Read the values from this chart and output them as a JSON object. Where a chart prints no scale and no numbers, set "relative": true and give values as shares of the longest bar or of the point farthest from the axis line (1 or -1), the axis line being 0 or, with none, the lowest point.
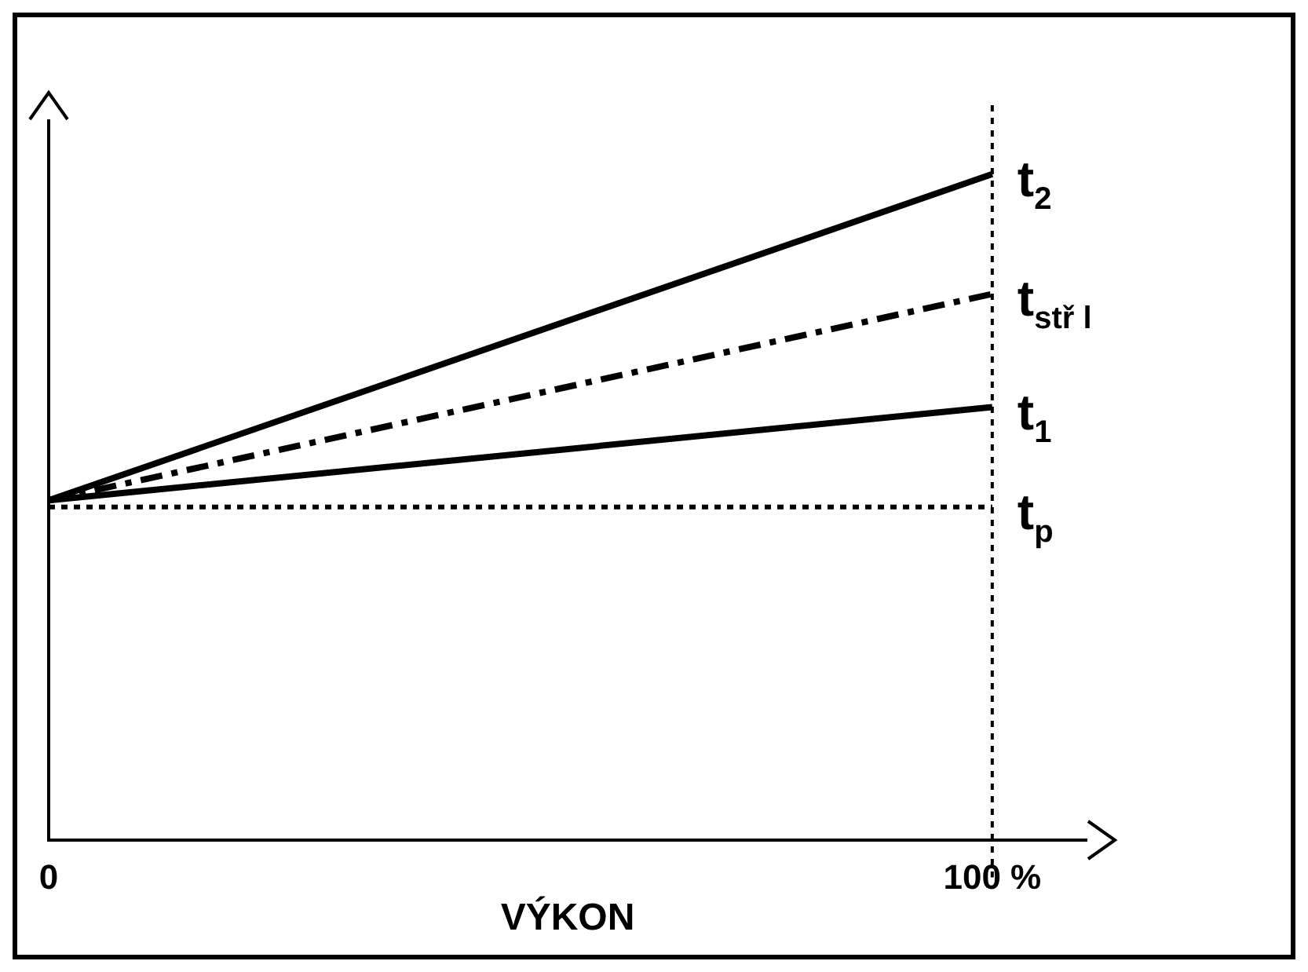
{
  "chart_data": {
    "type": "line",
    "relative": true,
    "xlabel": "VÝKON",
    "x": [
      0,
      100
    ],
    "xlim": [
      0,
      110
    ],
    "xticks": [
      0,
      {
        "value": 100,
        "label": "100 %"
      }
    ],
    "grid": false,
    "legend": false,
    "marker": "none",
    "ref_lines": [
      {
        "axis": "x",
        "value": 100,
        "line_style": "dotted",
        "color": "#000000"
      }
    ],
    "series": [
      {
        "name": "t$_{2}$",
        "color": "#000000",
        "line_style": "solid",
        "values": [
          0.51,
          1
        ]
      },
      {
        "name": "t$_{stř l}$",
        "color": "#000000",
        "line_style": "dashed",
        "values": [
          0.51,
          0.82
        ]
      },
      {
        "name": "t$_{1}$",
        "color": "#000000",
        "line_style": "solid",
        "values": [
          0.51,
          0.65
        ]
      },
      {
        "name": "t$_{p}$",
        "color": "#000000",
        "line_style": "dotted",
        "values": [
          0.5,
          0.5
        ]
      }
    ]
  }
}
